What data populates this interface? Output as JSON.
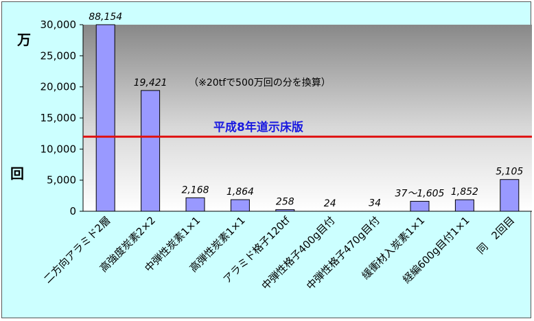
{
  "chart_data": {
    "type": "bar",
    "categories": [
      "二方向アラミド2層",
      "高強度炭素2×2",
      "中弾性炭素1×1",
      "高弾性炭素1×1",
      "アラミド格子120tf",
      "中弾性格子400g目付",
      "中弾性格子470g目付",
      "緩衝材入炭素1×1",
      "経編600g目付1×1",
      "同　2回目"
    ],
    "values": [
      88154,
      19421,
      2168,
      1864,
      258,
      24,
      34,
      1605,
      1852,
      5105
    ],
    "value_labels": [
      "88,154",
      "19,421",
      "2,168",
      "1,864",
      "258",
      "24",
      "34",
      "37～1,605",
      "1,852",
      "5,105"
    ],
    "value_note": "（※20tfで500万回の分を換算）",
    "y_ticks": [
      "0",
      "5,000",
      "10,000",
      "15,000",
      "20,000",
      "25,000",
      "30,000"
    ],
    "ylim": [
      0,
      30000
    ],
    "ylabel_top": "万",
    "ylabel_bottom": "回",
    "reference_line": {
      "value": 12000,
      "label": "平成8年道示床版",
      "color": "#e01010"
    },
    "bar_color": "#9999ff",
    "grid": false,
    "legend": "none"
  }
}
